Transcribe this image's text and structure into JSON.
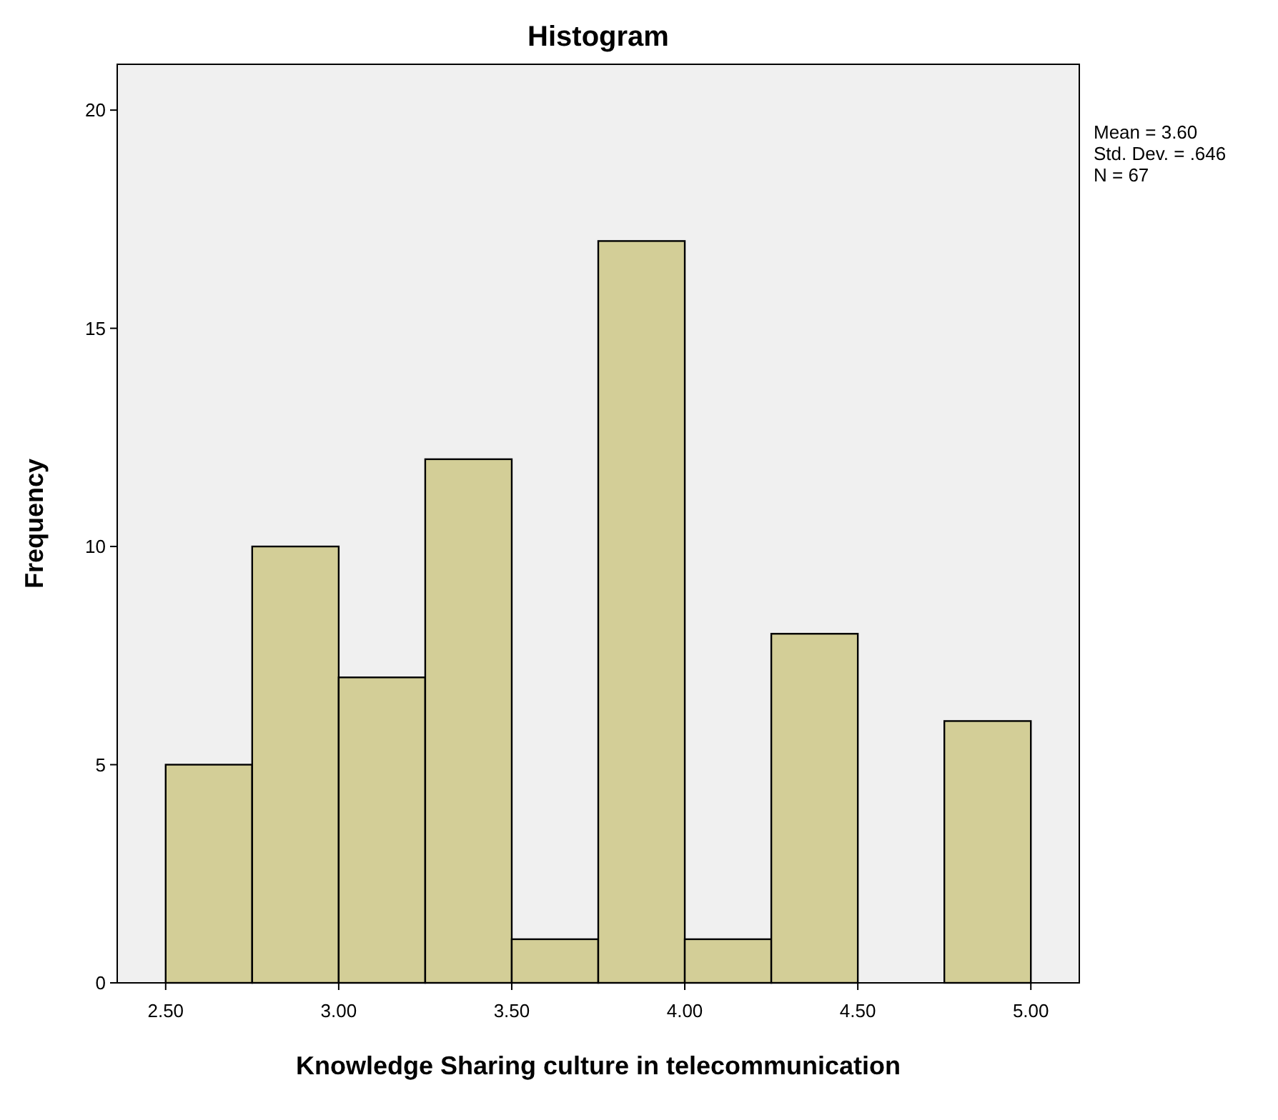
{
  "chart_data": {
    "type": "histogram",
    "title": "Histogram",
    "xlabel": "Knowledge Sharing culture in telecommunication",
    "ylabel": "Frequency",
    "bins": [
      2.5,
      2.75,
      3.0,
      3.25,
      3.5,
      3.75,
      4.0,
      4.25,
      4.5,
      4.75,
      5.0
    ],
    "values": [
      5,
      10,
      7,
      12,
      1,
      17,
      1,
      8,
      0,
      6
    ],
    "color": "#d3ce97",
    "xlim": [
      2.36,
      5.14
    ],
    "xticks": [
      {
        "value": 2.5,
        "label": "2.50"
      },
      {
        "value": 3,
        "label": "3.00"
      },
      {
        "value": 3.5,
        "label": "3.50"
      },
      {
        "value": 4,
        "label": "4.00"
      },
      {
        "value": 4.5,
        "label": "4.50"
      },
      {
        "value": 5,
        "label": "5.00"
      }
    ],
    "ylim": [
      0,
      21.05
    ],
    "yticks": [
      0,
      5,
      10,
      15,
      20
    ],
    "grid": false,
    "annotations": [
      "Mean = 3.60",
      "Std. Dev. = .646",
      "N = 67"
    ]
  }
}
